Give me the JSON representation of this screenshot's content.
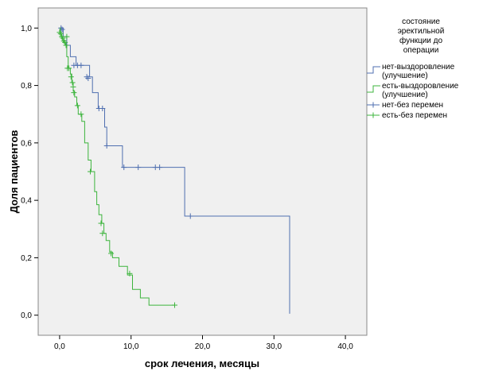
{
  "chart_data": {
    "type": "line",
    "xlabel": "срок лечения, месяцы",
    "ylabel": "Доля пациентов",
    "xlim": [
      -3,
      43
    ],
    "ylim": [
      -0.07,
      1.07
    ],
    "x_ticks": [
      0,
      10,
      20,
      30,
      40
    ],
    "x_tick_labels": [
      "0,0",
      "10,0",
      "20,0",
      "30,0",
      "40,0"
    ],
    "y_ticks": [
      0,
      0.2,
      0.4,
      0.6,
      0.8,
      1.0
    ],
    "y_tick_labels": [
      "0,0",
      "0,2",
      "0,4",
      "0,6",
      "0,8",
      "1,0"
    ],
    "grid": false,
    "legend_position": "right",
    "legend_title": "состояние эректильной функции до операции",
    "legend_entries": [
      {
        "label": "нет-выздоровление (улучшение)",
        "color": "#4f6fb0",
        "marker": "line"
      },
      {
        "label": "есть-выздоровление (улучшение)",
        "color": "#3cb43c",
        "marker": "line"
      },
      {
        "label": "нет-без перемен",
        "color": "#4f6fb0",
        "marker": "cross"
      },
      {
        "label": "есть-без перемен",
        "color": "#3cb43c",
        "marker": "cross"
      }
    ],
    "series": [
      {
        "name": "нет",
        "color": "#4f6fb0",
        "steps": [
          [
            0,
            1.0
          ],
          [
            0.5,
            0.97
          ],
          [
            1.0,
            0.94
          ],
          [
            1.5,
            0.9
          ],
          [
            2.3,
            0.87
          ],
          [
            4.2,
            0.83
          ],
          [
            4.6,
            0.775
          ],
          [
            5.4,
            0.72
          ],
          [
            6.3,
            0.655
          ],
          [
            6.6,
            0.59
          ],
          [
            8.8,
            0.515
          ],
          [
            17.5,
            0.345
          ],
          [
            32.2,
            0.005
          ]
        ],
        "end_x": 32.2,
        "censored": [
          [
            0.2,
            1.0
          ],
          [
            0.35,
            0.995
          ],
          [
            1.0,
            0.94
          ],
          [
            2.0,
            0.87
          ],
          [
            2.5,
            0.87
          ],
          [
            3.0,
            0.87
          ],
          [
            3.8,
            0.83
          ],
          [
            4.0,
            0.825
          ],
          [
            5.5,
            0.72
          ],
          [
            6.0,
            0.72
          ],
          [
            6.6,
            0.59
          ],
          [
            9.0,
            0.515
          ],
          [
            11.0,
            0.515
          ],
          [
            13.4,
            0.515
          ],
          [
            14.0,
            0.515
          ],
          [
            18.3,
            0.345
          ]
        ]
      },
      {
        "name": "есть",
        "color": "#3cb43c",
        "steps": [
          [
            0,
            1.0
          ],
          [
            0.1,
            0.985
          ],
          [
            0.2,
            0.97
          ],
          [
            0.4,
            0.96
          ],
          [
            0.5,
            0.95
          ],
          [
            0.8,
            0.94
          ],
          [
            1.0,
            0.9
          ],
          [
            1.2,
            0.86
          ],
          [
            1.5,
            0.84
          ],
          [
            1.7,
            0.81
          ],
          [
            1.9,
            0.78
          ],
          [
            2.1,
            0.76
          ],
          [
            2.4,
            0.73
          ],
          [
            2.6,
            0.7
          ],
          [
            3.1,
            0.675
          ],
          [
            3.5,
            0.6
          ],
          [
            4.0,
            0.54
          ],
          [
            4.4,
            0.5
          ],
          [
            4.9,
            0.43
          ],
          [
            5.2,
            0.385
          ],
          [
            5.5,
            0.35
          ],
          [
            5.9,
            0.32
          ],
          [
            6.2,
            0.285
          ],
          [
            6.5,
            0.26
          ],
          [
            7.0,
            0.22
          ],
          [
            7.4,
            0.2
          ],
          [
            8.3,
            0.17
          ],
          [
            9.5,
            0.14
          ],
          [
            10.2,
            0.09
          ],
          [
            11.3,
            0.06
          ],
          [
            12.5,
            0.035
          ]
        ],
        "end_x": 16.1,
        "censored": [
          [
            0.0,
            0.985
          ],
          [
            0.15,
            0.98
          ],
          [
            0.3,
            0.97
          ],
          [
            0.45,
            0.965
          ],
          [
            0.6,
            0.955
          ],
          [
            0.75,
            0.95
          ],
          [
            0.9,
            0.94
          ],
          [
            1.0,
            0.97
          ],
          [
            1.1,
            0.86
          ],
          [
            1.3,
            0.86
          ],
          [
            1.6,
            0.83
          ],
          [
            1.8,
            0.81
          ],
          [
            1.9,
            0.795
          ],
          [
            2.0,
            0.775
          ],
          [
            2.5,
            0.73
          ],
          [
            3.0,
            0.7
          ],
          [
            4.3,
            0.5
          ],
          [
            5.8,
            0.32
          ],
          [
            6.0,
            0.285
          ],
          [
            7.2,
            0.215
          ],
          [
            9.8,
            0.145
          ],
          [
            16.1,
            0.035
          ]
        ]
      }
    ]
  }
}
